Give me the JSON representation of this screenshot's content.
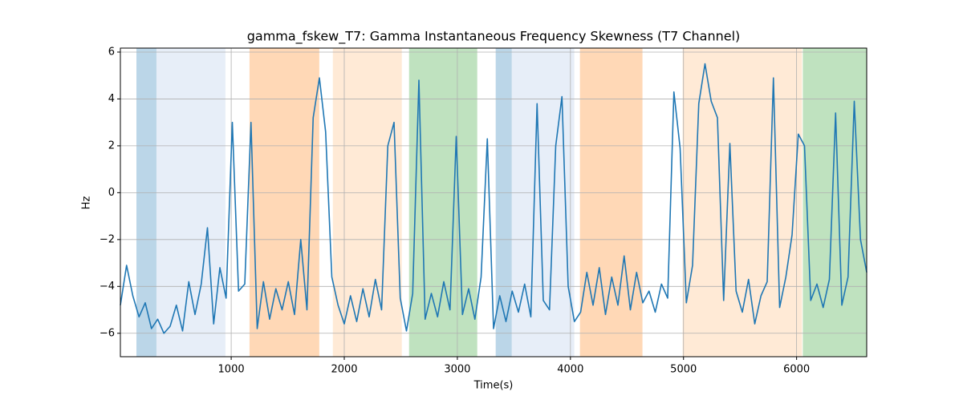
{
  "chart_data": {
    "type": "line",
    "title": "gamma_fskew_T7: Gamma Instantaneous Frequency Skewness (T7 Channel)",
    "x_label": "Time(s)",
    "y_label": "Hz",
    "x": [
      20,
      75,
      130,
      185,
      240,
      295,
      350,
      405,
      460,
      515,
      570,
      625,
      680,
      735,
      790,
      845,
      900,
      955,
      1010,
      1065,
      1120,
      1175,
      1230,
      1285,
      1340,
      1395,
      1450,
      1505,
      1560,
      1615,
      1670,
      1725,
      1780,
      1835,
      1890,
      1945,
      2000,
      2055,
      2110,
      2165,
      2220,
      2275,
      2330,
      2385,
      2440,
      2495,
      2550,
      2605,
      2660,
      2715,
      2770,
      2825,
      2880,
      2935,
      2990,
      3045,
      3100,
      3155,
      3210,
      3265,
      3320,
      3375,
      3430,
      3485,
      3540,
      3595,
      3650,
      3705,
      3760,
      3815,
      3870,
      3925,
      3980,
      4035,
      4090,
      4145,
      4200,
      4255,
      4310,
      4365,
      4420,
      4475,
      4530,
      4585,
      4640,
      4695,
      4750,
      4805,
      4860,
      4915,
      4970,
      5025,
      5080,
      5135,
      5190,
      5245,
      5300,
      5355,
      5410,
      5465,
      5520,
      5575,
      5630,
      5685,
      5740,
      5795,
      5850,
      5905,
      5960,
      6015,
      6070,
      6125,
      6180,
      6235,
      6290,
      6345,
      6400,
      6455,
      6510,
      6565,
      6620
    ],
    "values": [
      -4.8,
      -3.1,
      -4.4,
      -5.3,
      -4.7,
      -5.8,
      -5.4,
      -6.0,
      -5.7,
      -4.8,
      -5.9,
      -3.8,
      -5.2,
      -3.9,
      -1.5,
      -5.6,
      -3.2,
      -4.5,
      3.0,
      -4.2,
      -3.9,
      3.0,
      -5.8,
      -3.8,
      -5.4,
      -4.1,
      -5.0,
      -3.8,
      -5.2,
      -2.0,
      -5.0,
      3.2,
      4.9,
      2.6,
      -3.6,
      -4.8,
      -5.6,
      -4.4,
      -5.5,
      -4.1,
      -5.3,
      -3.7,
      -5.0,
      2.0,
      3.0,
      -4.5,
      -5.9,
      -4.3,
      4.8,
      -5.4,
      -4.3,
      -5.3,
      -3.8,
      -5.0,
      2.4,
      -5.2,
      -4.1,
      -5.4,
      -3.6,
      2.3,
      -5.8,
      -4.4,
      -5.5,
      -4.2,
      -5.1,
      -3.9,
      -5.3,
      3.8,
      -4.6,
      -5.0,
      2.0,
      4.1,
      -4.0,
      -5.5,
      -5.1,
      -3.4,
      -4.8,
      -3.2,
      -5.2,
      -3.6,
      -4.8,
      -2.7,
      -5.0,
      -3.4,
      -4.7,
      -4.2,
      -5.1,
      -3.9,
      -4.5,
      4.3,
      1.9,
      -4.7,
      -3.1,
      3.8,
      5.5,
      3.9,
      3.2,
      -4.6,
      2.1,
      -4.2,
      -5.1,
      -3.7,
      -5.6,
      -4.4,
      -3.8,
      4.9,
      -4.9,
      -3.6,
      -1.8,
      2.5,
      2.0,
      -4.6,
      -3.9,
      -4.9,
      -3.7,
      3.4,
      -4.8,
      -3.6,
      3.9,
      -2.0,
      -3.4
    ],
    "color": "#1f77b4",
    "spans": [
      {
        "x": [
          162,
          339
        ],
        "color": "#1f77b4",
        "opacity": 0.3
      },
      {
        "x": [
          339,
          949
        ],
        "color": "#aec7e8",
        "opacity": 0.3
      },
      {
        "x": [
          1162,
          1779
        ],
        "color": "#ff7f0e",
        "opacity": 0.3
      },
      {
        "x": [
          1899,
          2509
        ],
        "color": "#ffbb78",
        "opacity": 0.3
      },
      {
        "x": [
          2573,
          3176
        ],
        "color": "#2ca02c",
        "opacity": 0.3
      },
      {
        "x": [
          3339,
          3481
        ],
        "color": "#1f77b4",
        "opacity": 0.3
      },
      {
        "x": [
          3481,
          4034
        ],
        "color": "#aec7e8",
        "opacity": 0.3
      },
      {
        "x": [
          4084,
          4637
        ],
        "color": "#ff7f0e",
        "opacity": 0.3
      },
      {
        "x": [
          4992,
          6048
        ],
        "color": "#ffbb78",
        "opacity": 0.3
      },
      {
        "x": [
          6055,
          6620
        ],
        "color": "#2ca02c",
        "opacity": 0.3
      }
    ],
    "xlim": [
      20,
      6620
    ],
    "ylim": [
      -7,
      6.17
    ],
    "xticks": [
      1000,
      2000,
      3000,
      4000,
      5000,
      6000
    ],
    "yticks": [
      {
        "value": -6,
        "label": "−6"
      },
      {
        "value": -4,
        "label": "−4"
      },
      {
        "value": -2,
        "label": "−2"
      },
      0,
      2,
      4,
      6
    ],
    "grid": true
  }
}
